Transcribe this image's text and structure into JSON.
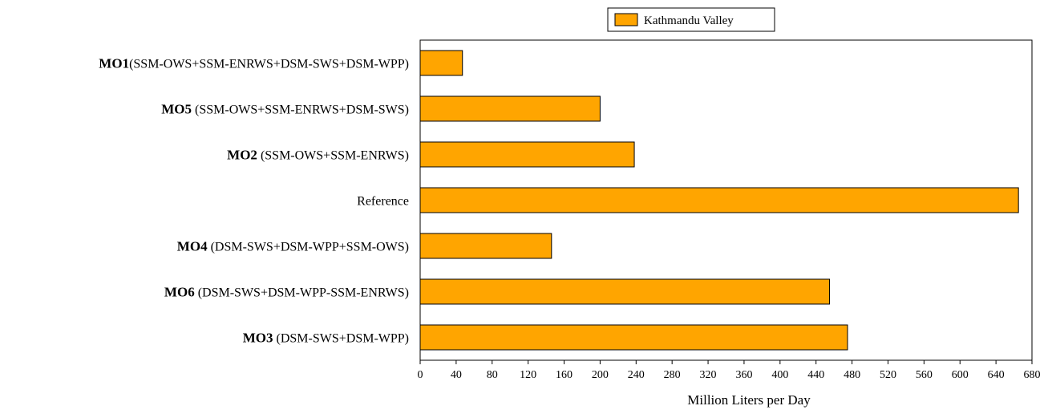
{
  "chart_data": {
    "type": "bar",
    "orientation": "horizontal",
    "xlabel": "Million Liters per Day",
    "ylabel": "",
    "xlim": [
      0,
      680
    ],
    "x_ticks": [
      0,
      40,
      80,
      120,
      160,
      200,
      240,
      280,
      320,
      360,
      400,
      440,
      480,
      520,
      560,
      600,
      640,
      680
    ],
    "grid": false,
    "legend_position": "top-right",
    "bar_color": "#ffa500",
    "bar_edge_color": "#000000",
    "series": [
      {
        "name": "Kathmandu Valley",
        "values": [
          47,
          200,
          238,
          665,
          146,
          455,
          475
        ]
      }
    ],
    "categories": [
      {
        "code": "MO1",
        "desc": "(SSM-OWS+SSM-ENRWS+DSM-SWS+DSM-WPP)"
      },
      {
        "code": "MO5",
        "desc": " (SSM-OWS+SSM-ENRWS+DSM-SWS)"
      },
      {
        "code": "MO2",
        "desc": " (SSM-OWS+SSM-ENRWS)"
      },
      {
        "code": "",
        "desc": "Reference"
      },
      {
        "code": "MO4",
        "desc": " (DSM-SWS+DSM-WPP+SSM-OWS)"
      },
      {
        "code": "MO6",
        "desc": " (DSM-SWS+DSM-WPP-SSM-ENRWS)"
      },
      {
        "code": "MO3",
        "desc": " (DSM-SWS+DSM-WPP)"
      }
    ]
  }
}
